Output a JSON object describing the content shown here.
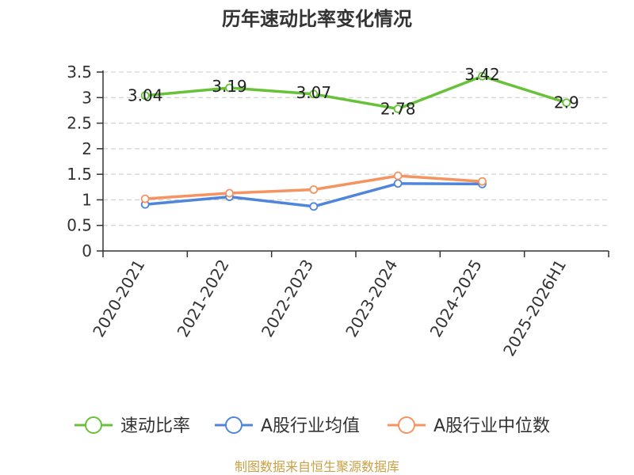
{
  "chart_data": {
    "type": "line",
    "title": "历年速动比率变化情况",
    "categories": [
      "2020-2021",
      "2021-2022",
      "2022-2023",
      "2023-2024",
      "2024-2025",
      "2025-2026H1"
    ],
    "ylim": [
      0,
      3.5
    ],
    "yticks": [
      0,
      0.5,
      1,
      1.5,
      2,
      2.5,
      3,
      3.5
    ],
    "ytick_labels": [
      "0",
      "0.5",
      "1",
      "1.5",
      "2",
      "2.5",
      "3",
      "3.5"
    ],
    "grid": true,
    "legend_position": "bottom",
    "series": [
      {
        "name": "速动比率",
        "color": "#67c23a",
        "values": [
          3.04,
          3.19,
          3.07,
          2.78,
          3.42,
          2.9
        ],
        "data_labels": [
          "3.04",
          "3.19",
          "3.07",
          "2.78",
          "3.42",
          "2.9"
        ]
      },
      {
        "name": "A股行业均值",
        "color": "#4f86dc",
        "values": [
          0.91,
          1.06,
          0.87,
          1.32,
          1.31,
          null
        ]
      },
      {
        "name": "A股行业中位数",
        "color": "#f59361",
        "values": [
          1.02,
          1.13,
          1.2,
          1.47,
          1.36,
          null
        ]
      }
    ]
  },
  "source_text": "制图数据来自恒生聚源数据库",
  "source_color": "#c8a046"
}
